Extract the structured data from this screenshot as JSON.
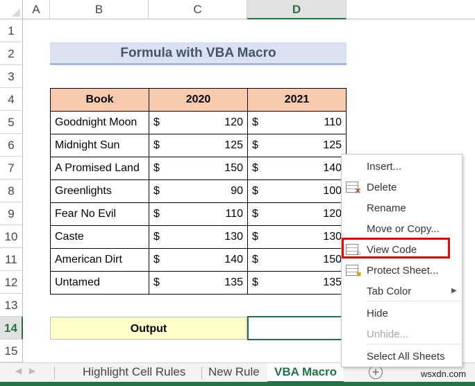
{
  "columns": [
    "A",
    "B",
    "C",
    "D"
  ],
  "rows": [
    "1",
    "2",
    "3",
    "4",
    "5",
    "6",
    "7",
    "8",
    "9",
    "10",
    "11",
    "12",
    "13",
    "14",
    "15"
  ],
  "selected_column": "D",
  "selected_row": "14",
  "title": "Formula with VBA Macro",
  "table": {
    "headers": [
      "Book",
      "2020",
      "2021"
    ],
    "currency": "$",
    "rows": [
      [
        "Goodnight Moon",
        120,
        110
      ],
      [
        "Midnight Sun",
        125,
        125
      ],
      [
        "A Promised Land",
        150,
        140
      ],
      [
        "Greenlights",
        90,
        100
      ],
      [
        "Fear No Evil",
        110,
        120
      ],
      [
        "Caste",
        130,
        130
      ],
      [
        "American Dirt",
        140,
        150
      ],
      [
        "Untamed",
        135,
        135
      ]
    ]
  },
  "output_label": "Output",
  "output_value": "",
  "tabs": [
    "Highlight Cell Rules",
    "New Rule",
    "VBA Macro"
  ],
  "active_tab": "VBA Macro",
  "watermark": "wsxdn.com",
  "context_menu": [
    {
      "label": "Insert...",
      "icon": ""
    },
    {
      "label": "Delete",
      "icon": "delete-sheet-icon"
    },
    {
      "label": "Rename",
      "icon": ""
    },
    {
      "label": "Move or Copy...",
      "icon": ""
    },
    {
      "label": "View Code",
      "icon": "view-code-icon",
      "highlighted": true
    },
    {
      "label": "Protect Sheet...",
      "icon": "protect-sheet-icon"
    },
    {
      "label": "Tab Color",
      "icon": "",
      "submenu": true
    },
    {
      "label": "Hide",
      "icon": ""
    },
    {
      "label": "Unhide...",
      "icon": "",
      "disabled": true
    },
    {
      "label": "Select All Sheets",
      "icon": ""
    }
  ],
  "colors": {
    "accent": "#217346",
    "header_fill": "#f8cbad",
    "title_fill": "#d9e1f2",
    "output_fill": "#ffffcc",
    "highlight": "#e00000"
  }
}
